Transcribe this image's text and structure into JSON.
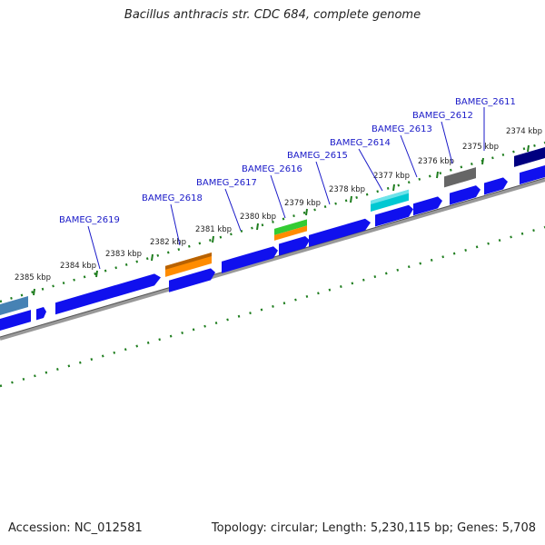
{
  "title": "Bacillus anthracis str. CDC 684, complete genome",
  "accession": "Accession: NC_012581",
  "summary": "Topology: circular; Length: 5,230,115 bp; Genes: 5,708",
  "kbp_labels": [
    "2374 kbp",
    "2375 kbp",
    "2376 kbp",
    "2377 kbp",
    "2378 kbp",
    "2379 kbp",
    "2380 kbp",
    "2381 kbp",
    "2382 kbp",
    "2383 kbp",
    "2384 kbp",
    "2385 kbp"
  ],
  "gene_labels": [
    "BAMEG_2611",
    "BAMEG_2612",
    "BAMEG_2613",
    "BAMEG_2614",
    "BAMEG_2615",
    "BAMEG_2616",
    "BAMEG_2617",
    "BAMEG_2618",
    "BAMEG_2619"
  ],
  "colors": {
    "cds": "#1010ee",
    "tick": "#1e7d1e",
    "backbone": "#888888",
    "label": "#1a1ac8",
    "orange": "#ff8c00",
    "green": "#33cc33",
    "cyan": "#00c8d2",
    "gray": "#666666",
    "navy": "#000080",
    "steelblue": "#4682b4"
  }
}
